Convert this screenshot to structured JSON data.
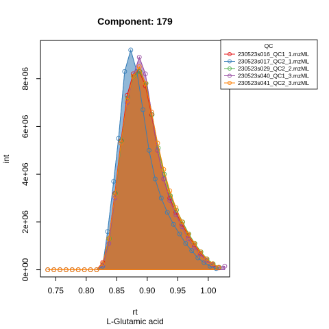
{
  "chart_data": {
    "type": "area",
    "title": "Component: 179",
    "xlabel": "rt",
    "subtitle": "L-Glutamic acid",
    "ylabel": "int",
    "xlim": [
      0.725,
      1.035
    ],
    "ylim": [
      -300000,
      9600000
    ],
    "x_ticks": [
      0.75,
      0.8,
      0.85,
      0.9,
      0.95,
      1.0
    ],
    "x_tick_labels": [
      "0.75",
      "0.80",
      "0.85",
      "0.90",
      "0.95",
      "1.00"
    ],
    "y_ticks": [
      0,
      2000000,
      4000000,
      6000000,
      8000000
    ],
    "y_tick_labels": [
      "0e+00",
      "2e+06",
      "4e+06",
      "6e+06",
      "8e+06"
    ],
    "legend": {
      "title": "QC",
      "position": "top-right"
    },
    "series": [
      {
        "name": "230523s016_QC1_1.mzML",
        "color": "#E41A1C",
        "x": [
          0.737,
          0.747,
          0.757,
          0.767,
          0.777,
          0.787,
          0.797,
          0.807,
          0.817,
          0.827,
          0.837,
          0.847,
          0.857,
          0.867,
          0.877,
          0.887,
          0.897,
          0.907,
          0.917,
          0.927,
          0.937,
          0.947,
          0.957,
          0.967,
          0.977,
          0.987,
          0.997,
          1.007,
          1.017
        ],
        "y": [
          0,
          0,
          0,
          0,
          0,
          0,
          0,
          0,
          0,
          300000,
          1300000,
          3200000,
          5400000,
          7300000,
          8200000,
          8300000,
          7700000,
          6500000,
          5000000,
          3800000,
          3000000,
          2400000,
          1900000,
          1450000,
          1050000,
          700000,
          400000,
          200000,
          80000
        ]
      },
      {
        "name": "230523s017_QC2_1.mzML",
        "color": "#377EB8",
        "x": [
          0.737,
          0.747,
          0.757,
          0.767,
          0.777,
          0.787,
          0.797,
          0.807,
          0.817,
          0.827,
          0.835,
          0.845,
          0.853,
          0.863,
          0.873,
          0.883,
          0.893,
          0.903,
          0.913,
          0.923,
          0.933,
          0.943,
          0.953,
          0.963,
          0.973,
          0.983,
          0.993,
          1.003,
          1.013
        ],
        "y": [
          0,
          0,
          0,
          0,
          0,
          0,
          0,
          0,
          0,
          150000,
          1600000,
          3700000,
          5500000,
          8300000,
          9200000,
          8300000,
          6700000,
          5000000,
          3800000,
          3000000,
          2400000,
          1900000,
          1500000,
          1100000,
          800000,
          500000,
          300000,
          150000,
          50000
        ]
      },
      {
        "name": "230523s029_QC2_2.mzML",
        "color": "#4DAF4A",
        "x": [
          0.737,
          0.747,
          0.757,
          0.767,
          0.777,
          0.787,
          0.797,
          0.807,
          0.817,
          0.827,
          0.838,
          0.848,
          0.858,
          0.868,
          0.878,
          0.888,
          0.898,
          0.908,
          0.918,
          0.928,
          0.938,
          0.948,
          0.958,
          0.968,
          0.978,
          0.988,
          0.998,
          1.008,
          1.018
        ],
        "y": [
          0,
          0,
          0,
          0,
          0,
          0,
          0,
          0,
          0,
          250000,
          1300000,
          3200000,
          5400000,
          7200000,
          8100000,
          8300000,
          7800000,
          6500000,
          5100000,
          4000000,
          3100000,
          2500000,
          2000000,
          1500000,
          1100000,
          750000,
          450000,
          250000,
          100000
        ]
      },
      {
        "name": "230523s040_QC1_3.mzML",
        "color": "#984EA3",
        "x": [
          0.737,
          0.747,
          0.757,
          0.767,
          0.777,
          0.787,
          0.797,
          0.807,
          0.817,
          0.827,
          0.837,
          0.847,
          0.857,
          0.867,
          0.877,
          0.887,
          0.897,
          0.907,
          0.917,
          0.927,
          0.937,
          0.947,
          0.957,
          0.967,
          0.977,
          0.987,
          0.997,
          1.007,
          1.017,
          1.027
        ],
        "y": [
          0,
          0,
          0,
          0,
          0,
          0,
          0,
          0,
          0,
          200000,
          1100000,
          3000000,
          5300000,
          7000000,
          8100000,
          8900000,
          8200000,
          6600000,
          5000000,
          3800000,
          2900000,
          2300000,
          1800000,
          1300000,
          950000,
          650000,
          400000,
          220000,
          100000,
          150000
        ]
      },
      {
        "name": "230523s041_QC2_3.mzML",
        "color": "#FF7F00",
        "x": [
          0.737,
          0.747,
          0.757,
          0.767,
          0.777,
          0.787,
          0.797,
          0.807,
          0.817,
          0.827,
          0.837,
          0.847,
          0.857,
          0.867,
          0.877,
          0.887,
          0.897,
          0.907,
          0.917,
          0.927,
          0.937,
          0.947,
          0.957,
          0.967,
          0.977,
          0.987,
          0.997,
          1.007,
          1.017
        ],
        "y": [
          0,
          0,
          0,
          0,
          0,
          0,
          0,
          0,
          0,
          250000,
          1300000,
          3100000,
          5300000,
          7100000,
          8100000,
          8500000,
          7800000,
          6600000,
          5300000,
          4200000,
          3300000,
          2600000,
          2000000,
          1500000,
          1100000,
          750000,
          450000,
          250000,
          100000
        ]
      }
    ]
  }
}
